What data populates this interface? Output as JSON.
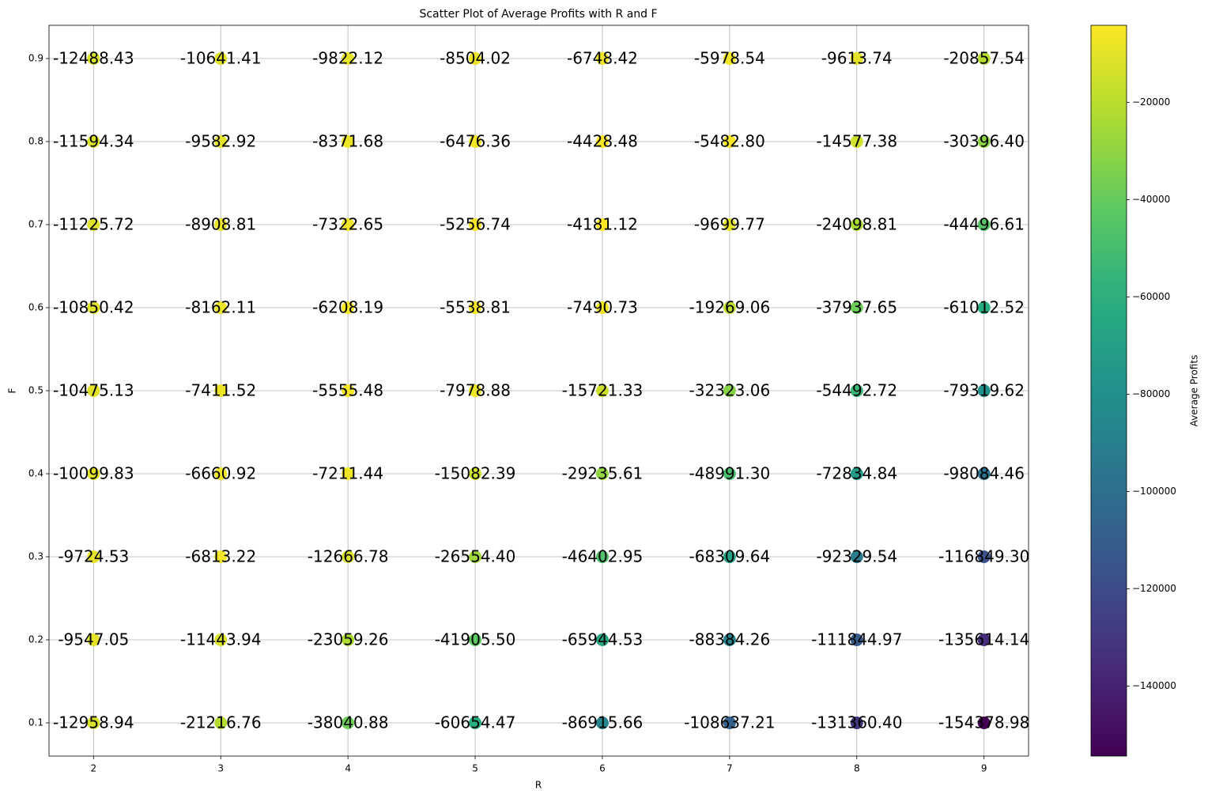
{
  "chart_data": {
    "type": "scatter",
    "title": "Scatter Plot of Average Profits with R and F",
    "x_label": "R",
    "y_label": "F",
    "colorbar_label": "Average Profits",
    "colormap": "viridis",
    "grid": true,
    "highlight_max_color": "#ff0000",
    "xlim": [
      1.65,
      9.35
    ],
    "ylim": [
      0.06,
      0.94
    ],
    "xticks": [
      2,
      3,
      4,
      5,
      6,
      7,
      8,
      9
    ],
    "yticks": [
      0.1,
      0.2,
      0.3,
      0.4,
      0.5,
      0.6,
      0.7,
      0.8,
      0.9
    ],
    "clim": [
      -154378.98,
      -4181.12
    ],
    "cticks": [
      {
        "value": -140000,
        "label": "−140000"
      },
      {
        "value": -120000,
        "label": "−120000"
      },
      {
        "value": -100000,
        "label": "−100000"
      },
      {
        "value": -80000,
        "label": "−80000"
      },
      {
        "value": -60000,
        "label": "−60000"
      },
      {
        "value": -40000,
        "label": "−40000"
      },
      {
        "value": -20000,
        "label": "−20000"
      }
    ],
    "x": [
      2,
      3,
      4,
      5,
      6,
      7,
      8,
      9,
      2,
      3,
      4,
      5,
      6,
      7,
      8,
      9,
      2,
      3,
      4,
      5,
      6,
      7,
      8,
      9,
      2,
      3,
      4,
      5,
      6,
      7,
      8,
      9,
      2,
      3,
      4,
      5,
      6,
      7,
      8,
      9,
      2,
      3,
      4,
      5,
      6,
      7,
      8,
      9,
      2,
      3,
      4,
      5,
      6,
      7,
      8,
      9,
      2,
      3,
      4,
      5,
      6,
      7,
      8,
      9,
      2,
      3,
      4,
      5,
      6,
      7,
      8,
      9
    ],
    "y": [
      0.9,
      0.9,
      0.9,
      0.9,
      0.9,
      0.9,
      0.9,
      0.9,
      0.8,
      0.8,
      0.8,
      0.8,
      0.8,
      0.8,
      0.8,
      0.8,
      0.7,
      0.7,
      0.7,
      0.7,
      0.7,
      0.7,
      0.7,
      0.7,
      0.6,
      0.6,
      0.6,
      0.6,
      0.6,
      0.6,
      0.6,
      0.6,
      0.5,
      0.5,
      0.5,
      0.5,
      0.5,
      0.5,
      0.5,
      0.5,
      0.4,
      0.4,
      0.4,
      0.4,
      0.4,
      0.4,
      0.4,
      0.4,
      0.3,
      0.3,
      0.3,
      0.3,
      0.3,
      0.3,
      0.3,
      0.3,
      0.2,
      0.2,
      0.2,
      0.2,
      0.2,
      0.2,
      0.2,
      0.2,
      0.1,
      0.1,
      0.1,
      0.1,
      0.1,
      0.1,
      0.1,
      0.1
    ],
    "values": [
      -12488.43,
      -10641.41,
      -9822.12,
      -8504.02,
      -6748.42,
      -5978.54,
      -9613.74,
      -20857.54,
      -11594.34,
      -9582.92,
      -8371.68,
      -6476.36,
      -4428.48,
      -5482.8,
      -14577.38,
      -30396.4,
      -11225.72,
      -8908.81,
      -7322.65,
      -5256.74,
      -4181.12,
      -9699.77,
      -24098.81,
      -44496.61,
      -10850.42,
      -8162.11,
      -6208.19,
      -5538.81,
      -7490.73,
      -19269.06,
      -37937.65,
      -61012.52,
      -10475.13,
      -7411.52,
      -5555.48,
      -7978.88,
      -15721.33,
      -32323.06,
      -54492.72,
      -79319.62,
      -10099.83,
      -6660.92,
      -7211.44,
      -15082.39,
      -29235.61,
      -48991.3,
      -72834.84,
      -98084.46,
      -9724.53,
      -6813.22,
      -12666.78,
      -26554.4,
      -46402.95,
      -68309.64,
      -92329.54,
      -116849.3,
      -9547.05,
      -11443.94,
      -23059.26,
      -41905.5,
      -65944.53,
      -88384.26,
      -111844.97,
      -135614.14,
      -12958.94,
      -21216.76,
      -38040.88,
      -60654.47,
      -86915.66,
      -108637.21,
      -131360.4,
      -154378.98
    ],
    "value_labels": [
      "-12488.43",
      "-10641.41",
      "-9822.12",
      "-8504.02",
      "-6748.42",
      "-5978.54",
      "-9613.74",
      "-20857.54",
      "-11594.34",
      "-9582.92",
      "-8371.68",
      "-6476.36",
      "-4428.48",
      "-5482.80",
      "-14577.38",
      "-30396.40",
      "-11225.72",
      "-8908.81",
      "-7322.65",
      "-5256.74",
      "-4181.12",
      "-9699.77",
      "-24098.81",
      "-44496.61",
      "-10850.42",
      "-8162.11",
      "-6208.19",
      "-5538.81",
      "-7490.73",
      "-19269.06",
      "-37937.65",
      "-61012.52",
      "-10475.13",
      "-7411.52",
      "-5555.48",
      "-7978.88",
      "-15721.33",
      "-32323.06",
      "-54492.72",
      "-79319.62",
      "-10099.83",
      "-6660.92",
      "-7211.44",
      "-15082.39",
      "-29235.61",
      "-48991.30",
      "-72834.84",
      "-98084.46",
      "-9724.53",
      "-6813.22",
      "-12666.78",
      "-26554.40",
      "-46402.95",
      "-68309.64",
      "-92329.54",
      "-116849.30",
      "-9547.05",
      "-11443.94",
      "-23059.26",
      "-41905.50",
      "-65944.53",
      "-88384.26",
      "-111844.97",
      "-135614.14",
      "-12958.94",
      "-21216.76",
      "-38040.88",
      "-60654.47",
      "-86915.66",
      "-108637.21",
      "-131360.40",
      "-154378.98"
    ]
  }
}
